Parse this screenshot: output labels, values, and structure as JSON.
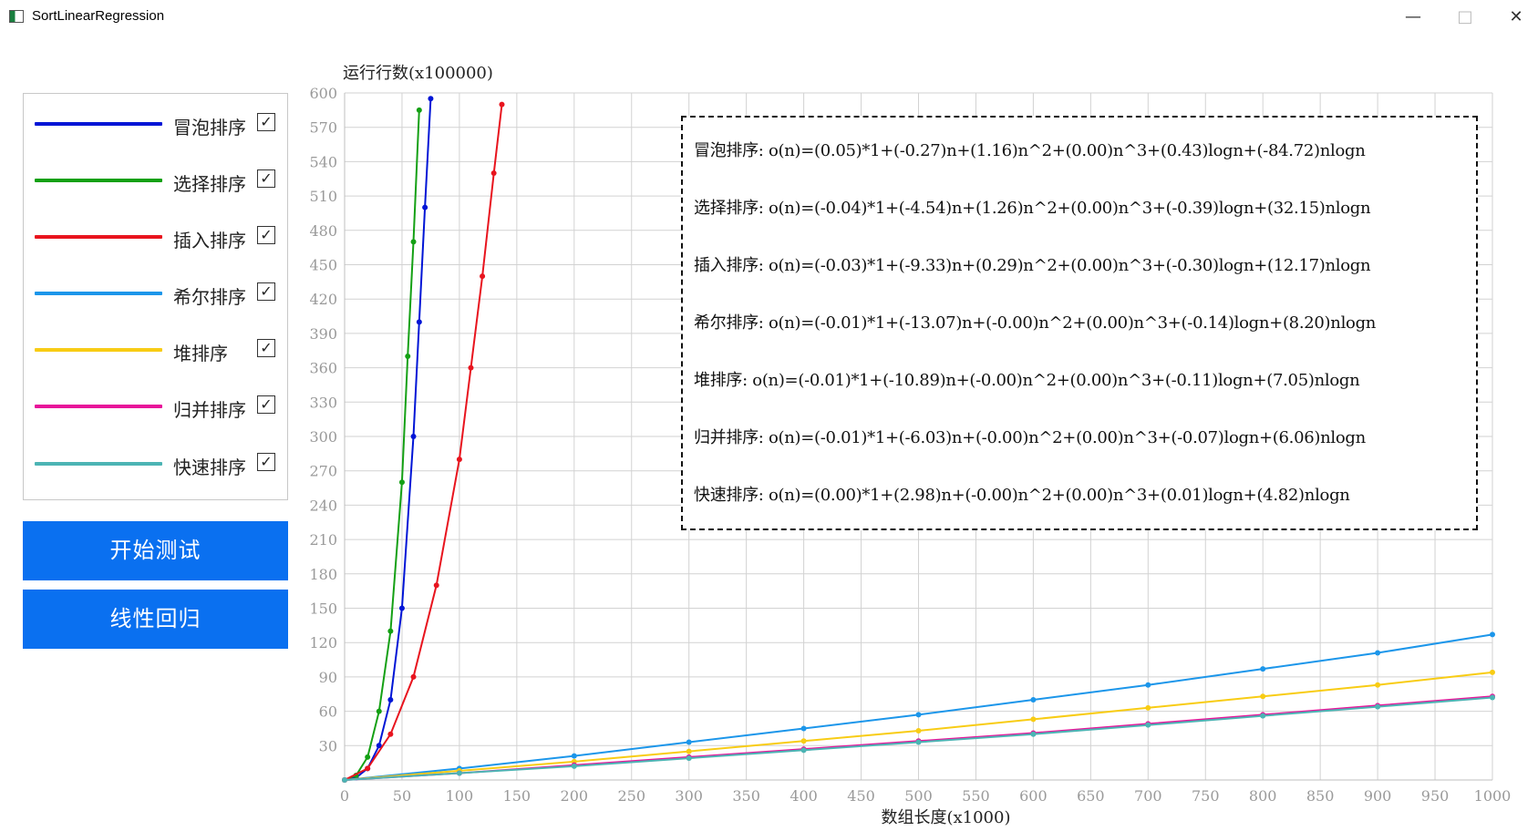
{
  "window": {
    "title": "SortLinearRegression",
    "min_icon": "minimize-icon",
    "max_icon": "maximize-icon",
    "close_icon": "close-icon"
  },
  "legend": {
    "items": [
      {
        "label": "冒泡排序",
        "color": "#0015d6",
        "checked": true
      },
      {
        "label": "选择排序",
        "color": "#14a014",
        "checked": true
      },
      {
        "label": "插入排序",
        "color": "#e8141e",
        "checked": true
      },
      {
        "label": "希尔排序",
        "color": "#1c96ea",
        "checked": true
      },
      {
        "label": "堆排序",
        "color": "#f8cc14",
        "checked": true
      },
      {
        "label": "归并排序",
        "color": "#e8149a",
        "checked": true
      },
      {
        "label": "快速排序",
        "color": "#4cb4b4",
        "checked": true
      }
    ]
  },
  "buttons": {
    "start": "开始测试",
    "regress": "线性回归"
  },
  "equations": [
    "冒泡排序: o(n)=(0.05)*1+(-0.27)n+(1.16)n^2+(0.00)n^3+(0.43)logn+(-84.72)nlogn",
    "选择排序: o(n)=(-0.04)*1+(-4.54)n+(1.26)n^2+(0.00)n^3+(-0.39)logn+(32.15)nlogn",
    "插入排序: o(n)=(-0.03)*1+(-9.33)n+(0.29)n^2+(0.00)n^3+(-0.30)logn+(12.17)nlogn",
    "希尔排序: o(n)=(-0.01)*1+(-13.07)n+(-0.00)n^2+(0.00)n^3+(-0.14)logn+(8.20)nlogn",
    "堆排序: o(n)=(-0.01)*1+(-10.89)n+(-0.00)n^2+(0.00)n^3+(-0.11)logn+(7.05)nlogn",
    "归并排序: o(n)=(-0.01)*1+(-6.03)n+(-0.00)n^2+(0.00)n^3+(-0.07)logn+(6.06)nlogn",
    "快速排序: o(n)=(0.00)*1+(2.98)n+(-0.00)n^2+(0.00)n^3+(0.01)logn+(4.82)nlogn"
  ],
  "chart_data": {
    "type": "scatter",
    "xlabel": "数组长度(x1000)",
    "ylabel": "运行行数(x100000)",
    "xlim": [
      0,
      1000
    ],
    "ylim": [
      0,
      600
    ],
    "xticks": [
      0,
      50,
      100,
      150,
      200,
      250,
      300,
      350,
      400,
      450,
      500,
      550,
      600,
      650,
      700,
      750,
      800,
      850,
      900,
      950,
      1000
    ],
    "yticks": [
      30,
      60,
      90,
      120,
      150,
      180,
      210,
      240,
      270,
      300,
      330,
      360,
      390,
      420,
      450,
      480,
      510,
      540,
      570,
      600
    ],
    "grid": true,
    "series": [
      {
        "name": "冒泡排序",
        "color": "#0015d6",
        "x": [
          0,
          10,
          20,
          30,
          40,
          50,
          60,
          65,
          70,
          75
        ],
        "y": [
          0,
          2,
          10,
          30,
          70,
          150,
          300,
          400,
          500,
          595
        ]
      },
      {
        "name": "选择排序",
        "color": "#14a014",
        "x": [
          0,
          10,
          20,
          30,
          40,
          50,
          55,
          60,
          65
        ],
        "y": [
          0,
          4,
          20,
          60,
          130,
          260,
          370,
          470,
          585
        ]
      },
      {
        "name": "插入排序",
        "color": "#e8141e",
        "x": [
          0,
          20,
          40,
          60,
          80,
          100,
          110,
          120,
          130,
          137
        ],
        "y": [
          0,
          10,
          40,
          90,
          170,
          280,
          360,
          440,
          530,
          590
        ]
      },
      {
        "name": "希尔排序",
        "color": "#1c96ea",
        "x": [
          0,
          100,
          200,
          300,
          400,
          500,
          600,
          700,
          800,
          900,
          1000
        ],
        "y": [
          0,
          10,
          21,
          33,
          45,
          57,
          70,
          83,
          97,
          111,
          127
        ]
      },
      {
        "name": "堆排序",
        "color": "#f8cc14",
        "x": [
          0,
          100,
          200,
          300,
          400,
          500,
          600,
          700,
          800,
          900,
          1000
        ],
        "y": [
          0,
          8,
          16,
          25,
          34,
          43,
          53,
          63,
          73,
          83,
          94
        ]
      },
      {
        "name": "归并排序",
        "color": "#e8149a",
        "x": [
          0,
          100,
          200,
          300,
          400,
          500,
          600,
          700,
          800,
          900,
          1000
        ],
        "y": [
          0,
          6,
          13,
          20,
          27,
          34,
          41,
          49,
          57,
          65,
          73
        ]
      },
      {
        "name": "快速排序",
        "color": "#4cb4b4",
        "x": [
          0,
          100,
          200,
          300,
          400,
          500,
          600,
          700,
          800,
          900,
          1000
        ],
        "y": [
          0,
          6,
          12,
          19,
          26,
          33,
          40,
          48,
          56,
          64,
          72
        ]
      }
    ]
  }
}
